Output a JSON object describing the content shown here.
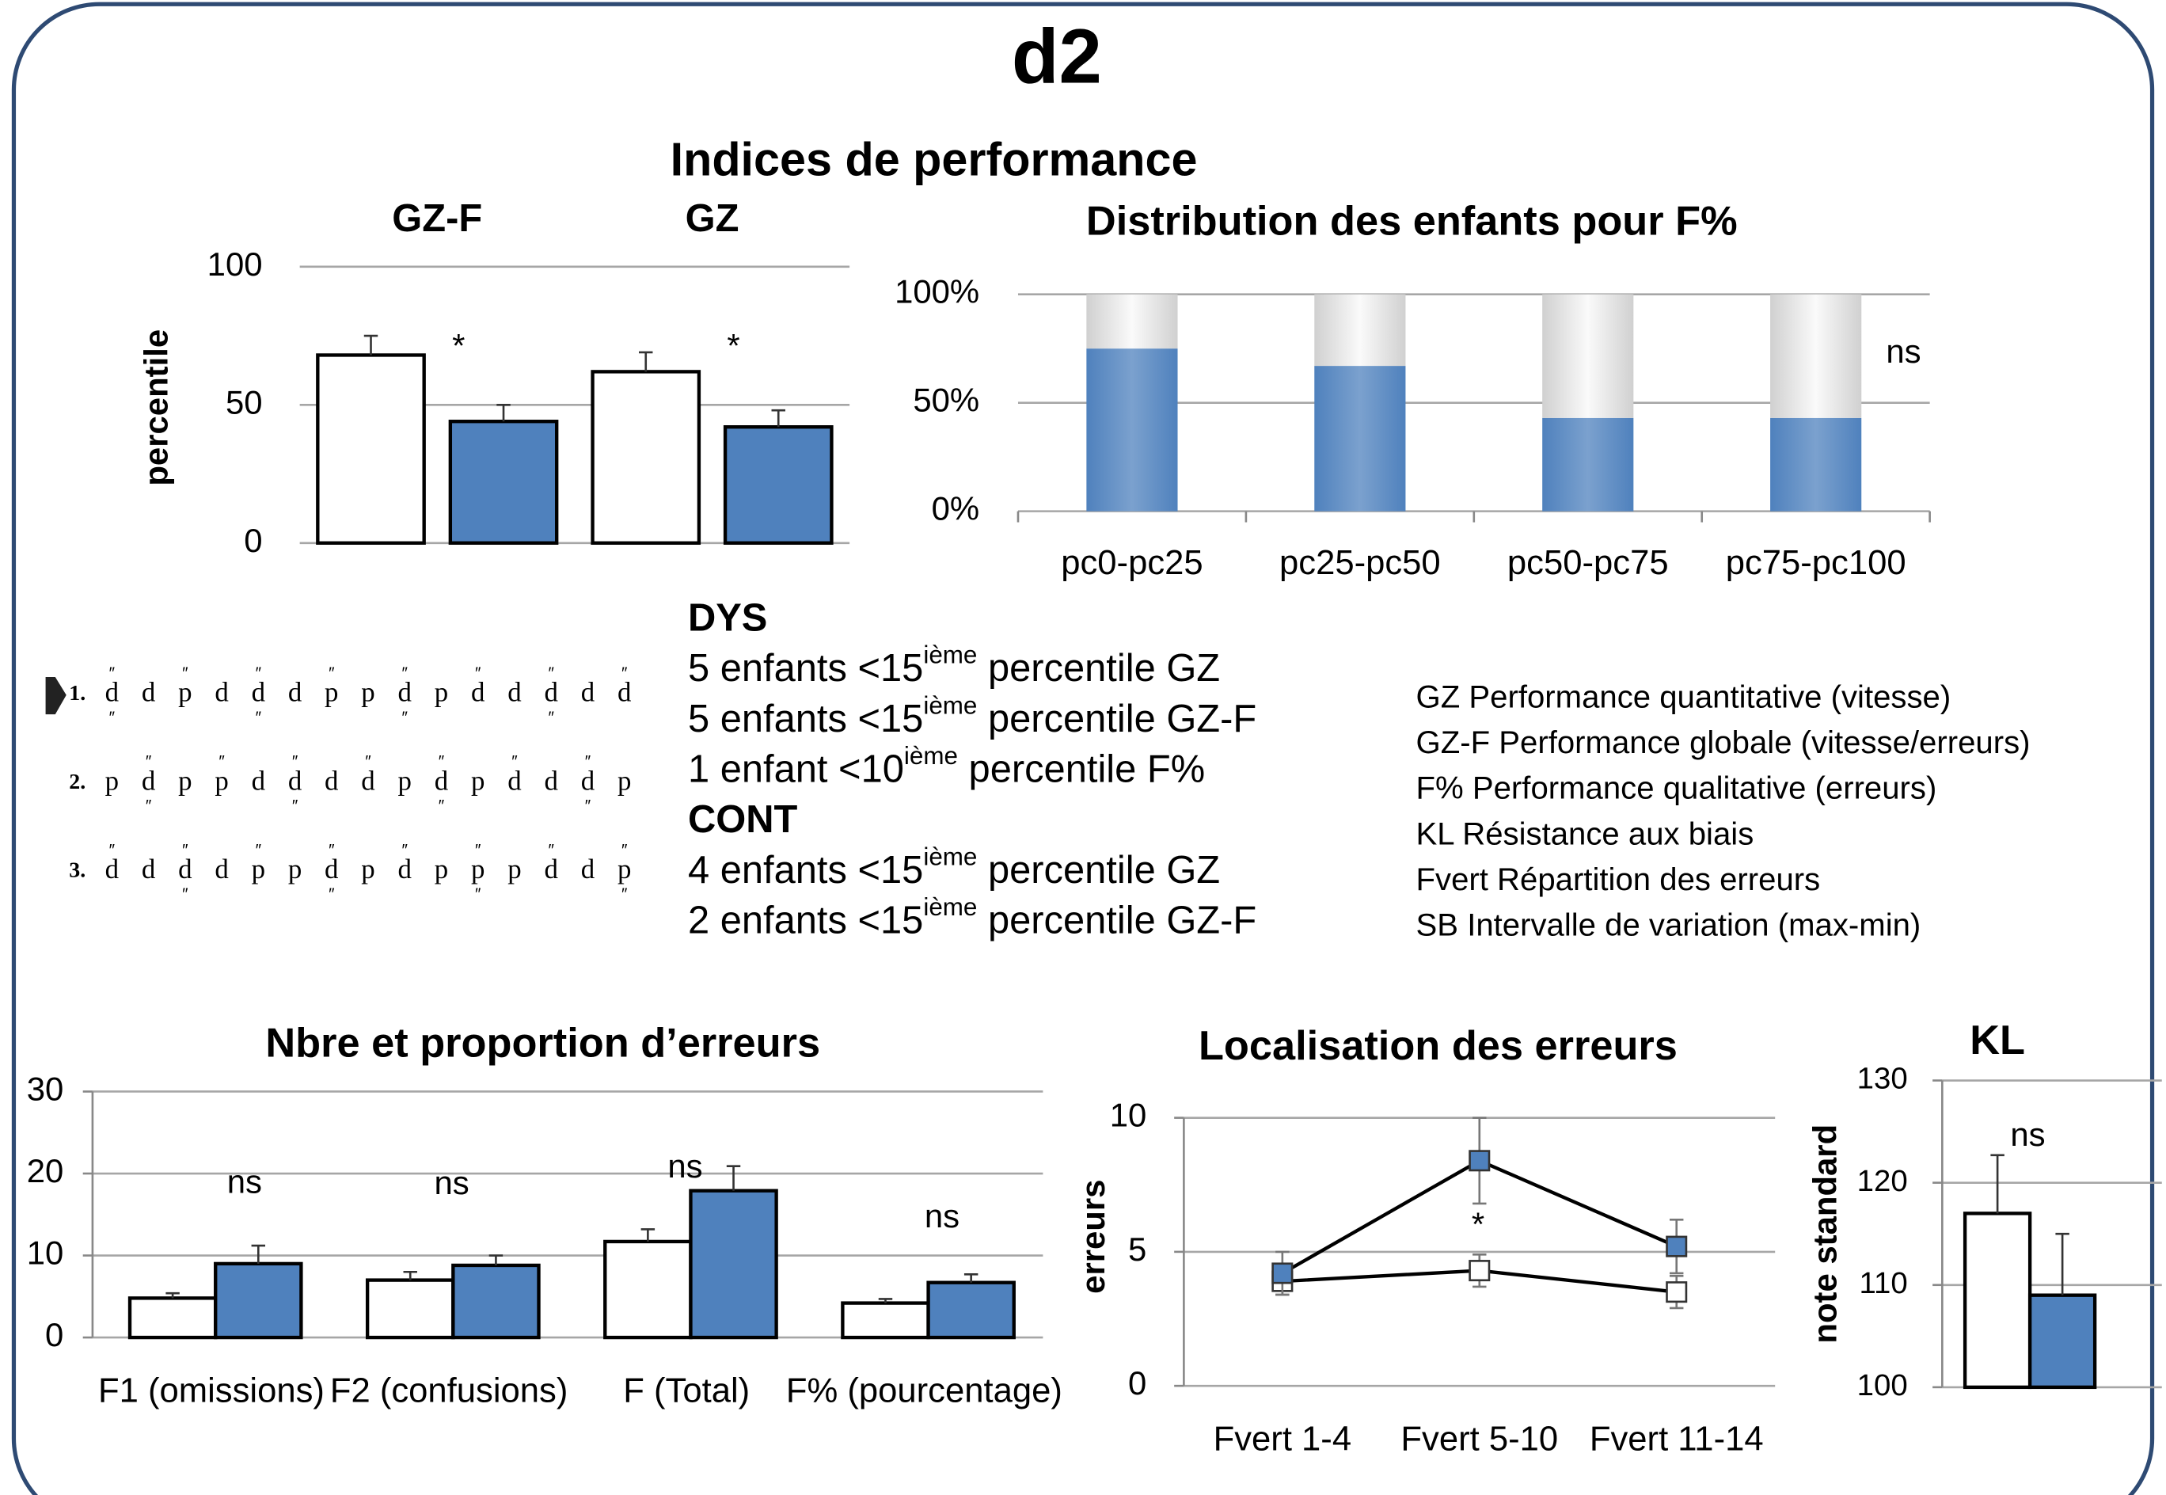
{
  "title": "d2",
  "heading": "Indices de performance",
  "chart_data": [
    {
      "type": "bar",
      "categories": [
        "GZ-F",
        "GZ"
      ],
      "ylabel": "percentile",
      "ylim": [
        0,
        100
      ],
      "yticks": [
        0,
        50,
        100
      ],
      "grid": true,
      "series": [
        {
          "color": "#ffffff",
          "values": [
            68,
            62
          ],
          "errors": [
            7,
            7
          ]
        },
        {
          "color": "#4f81bd",
          "values": [
            44,
            42
          ],
          "errors": [
            6,
            6
          ]
        }
      ],
      "annotations": [
        "*",
        "*"
      ]
    },
    {
      "type": "bar",
      "stacked": true,
      "title": "Distribution des enfants pour F%",
      "categories": [
        "pc0-pc25",
        "pc25-pc50",
        "pc50-pc75",
        "pc75-pc100"
      ],
      "ylim": [
        0,
        100
      ],
      "yticks": [
        {
          "value": 0,
          "label": "0%"
        },
        {
          "value": 50,
          "label": "50%"
        },
        {
          "value": 100,
          "label": "100%"
        }
      ],
      "grid": true,
      "series": [
        {
          "color": "#4f81bd",
          "values": [
            75,
            67,
            43,
            43
          ]
        },
        {
          "color": "#d0d0d0",
          "values": [
            25,
            33,
            57,
            57
          ]
        }
      ],
      "annotations": [
        "ns"
      ]
    },
    {
      "type": "bar",
      "title": "Nbre et proportion d’erreurs",
      "categories": [
        "F1 (omissions)",
        "F2 (confusions)",
        "F (Total)",
        "F% (pourcentage)"
      ],
      "ylim": [
        0,
        30
      ],
      "yticks": [
        0,
        10,
        20,
        30
      ],
      "grid": true,
      "series": [
        {
          "color": "#ffffff",
          "values": [
            4.8,
            7,
            11.7,
            4.2
          ],
          "errors": [
            0.6,
            1,
            1.5,
            0.5
          ]
        },
        {
          "color": "#4f81bd",
          "values": [
            9,
            8.8,
            17.9,
            6.7
          ],
          "errors": [
            2.2,
            1.2,
            3,
            1
          ]
        }
      ],
      "annotations": [
        "ns",
        "ns",
        "ns",
        "ns"
      ]
    },
    {
      "type": "line",
      "title": "Localisation des erreurs",
      "categories": [
        "Fvert 1-4",
        "Fvert 5-10",
        "Fvert 11-14"
      ],
      "ylabel": "erreurs",
      "ylim": [
        0,
        10
      ],
      "yticks": [
        0,
        5,
        10
      ],
      "grid": true,
      "series": [
        {
          "color": "#ffffff",
          "values": [
            3.9,
            4.3,
            3.5
          ],
          "errors": [
            0.5,
            0.6,
            0.6
          ]
        },
        {
          "color": "#4f81bd",
          "values": [
            4.2,
            8.4,
            5.2
          ],
          "errors": [
            0.8,
            1.6,
            1
          ]
        }
      ],
      "annotations": [
        "*"
      ]
    },
    {
      "type": "bar",
      "title": "KL",
      "categories": [
        null
      ],
      "ylabel": "note standard",
      "ylim": [
        100,
        130
      ],
      "yticks": [
        100,
        110,
        120,
        130
      ],
      "grid": true,
      "series": [
        {
          "color": "#ffffff",
          "values": [
            117
          ],
          "errors": [
            5.7
          ]
        },
        {
          "color": "#4f81bd",
          "values": [
            109
          ],
          "errors": [
            6
          ]
        }
      ],
      "annotations": [
        "ns"
      ]
    }
  ],
  "groups": [
    {
      "label": "DYS",
      "lines": [
        {
          "text": "5 enfants <15",
          "sup": "ième",
          "rest": " percentile GZ"
        },
        {
          "text": "5 enfants <15",
          "sup": "ième",
          "rest": " percentile GZ-F"
        },
        {
          "text": "1 enfant <10",
          "sup": "ième",
          "rest": " percentile F%"
        }
      ]
    },
    {
      "label": "CONT",
      "lines": [
        {
          "text": "4 enfants <15",
          "sup": "ième",
          "rest": " percentile GZ"
        },
        {
          "text": "2 enfants <15",
          "sup": "ième",
          "rest": " percentile GZ-F"
        }
      ]
    }
  ],
  "definitions": [
    "GZ Performance quantitative (vitesse)",
    "GZ-F Performance globale (vitesse/erreurs)",
    "F% Performance qualitative (erreurs)",
    "KL Résistance aux biais",
    "Fvert Répartition des erreurs",
    "SB Intervalle de variation (max-min)"
  ],
  "stimulus": {
    "rows": [
      {
        "label": "1.",
        "letters": [
          "d",
          "d",
          "p",
          "d",
          "d",
          "d",
          "p",
          "p",
          "d",
          "p",
          "d",
          "d",
          "d",
          "d",
          "d"
        ]
      },
      {
        "label": "2.",
        "letters": [
          "p",
          "d",
          "p",
          "p",
          "d",
          "d",
          "d",
          "d",
          "p",
          "d",
          "p",
          "d",
          "d",
          "d",
          "p"
        ]
      },
      {
        "label": "3.",
        "letters": [
          "d",
          "d",
          "d",
          "d",
          "p",
          "p",
          "d",
          "p",
          "d",
          "p",
          "p",
          "p",
          "d",
          "d",
          "p"
        ]
      }
    ]
  }
}
